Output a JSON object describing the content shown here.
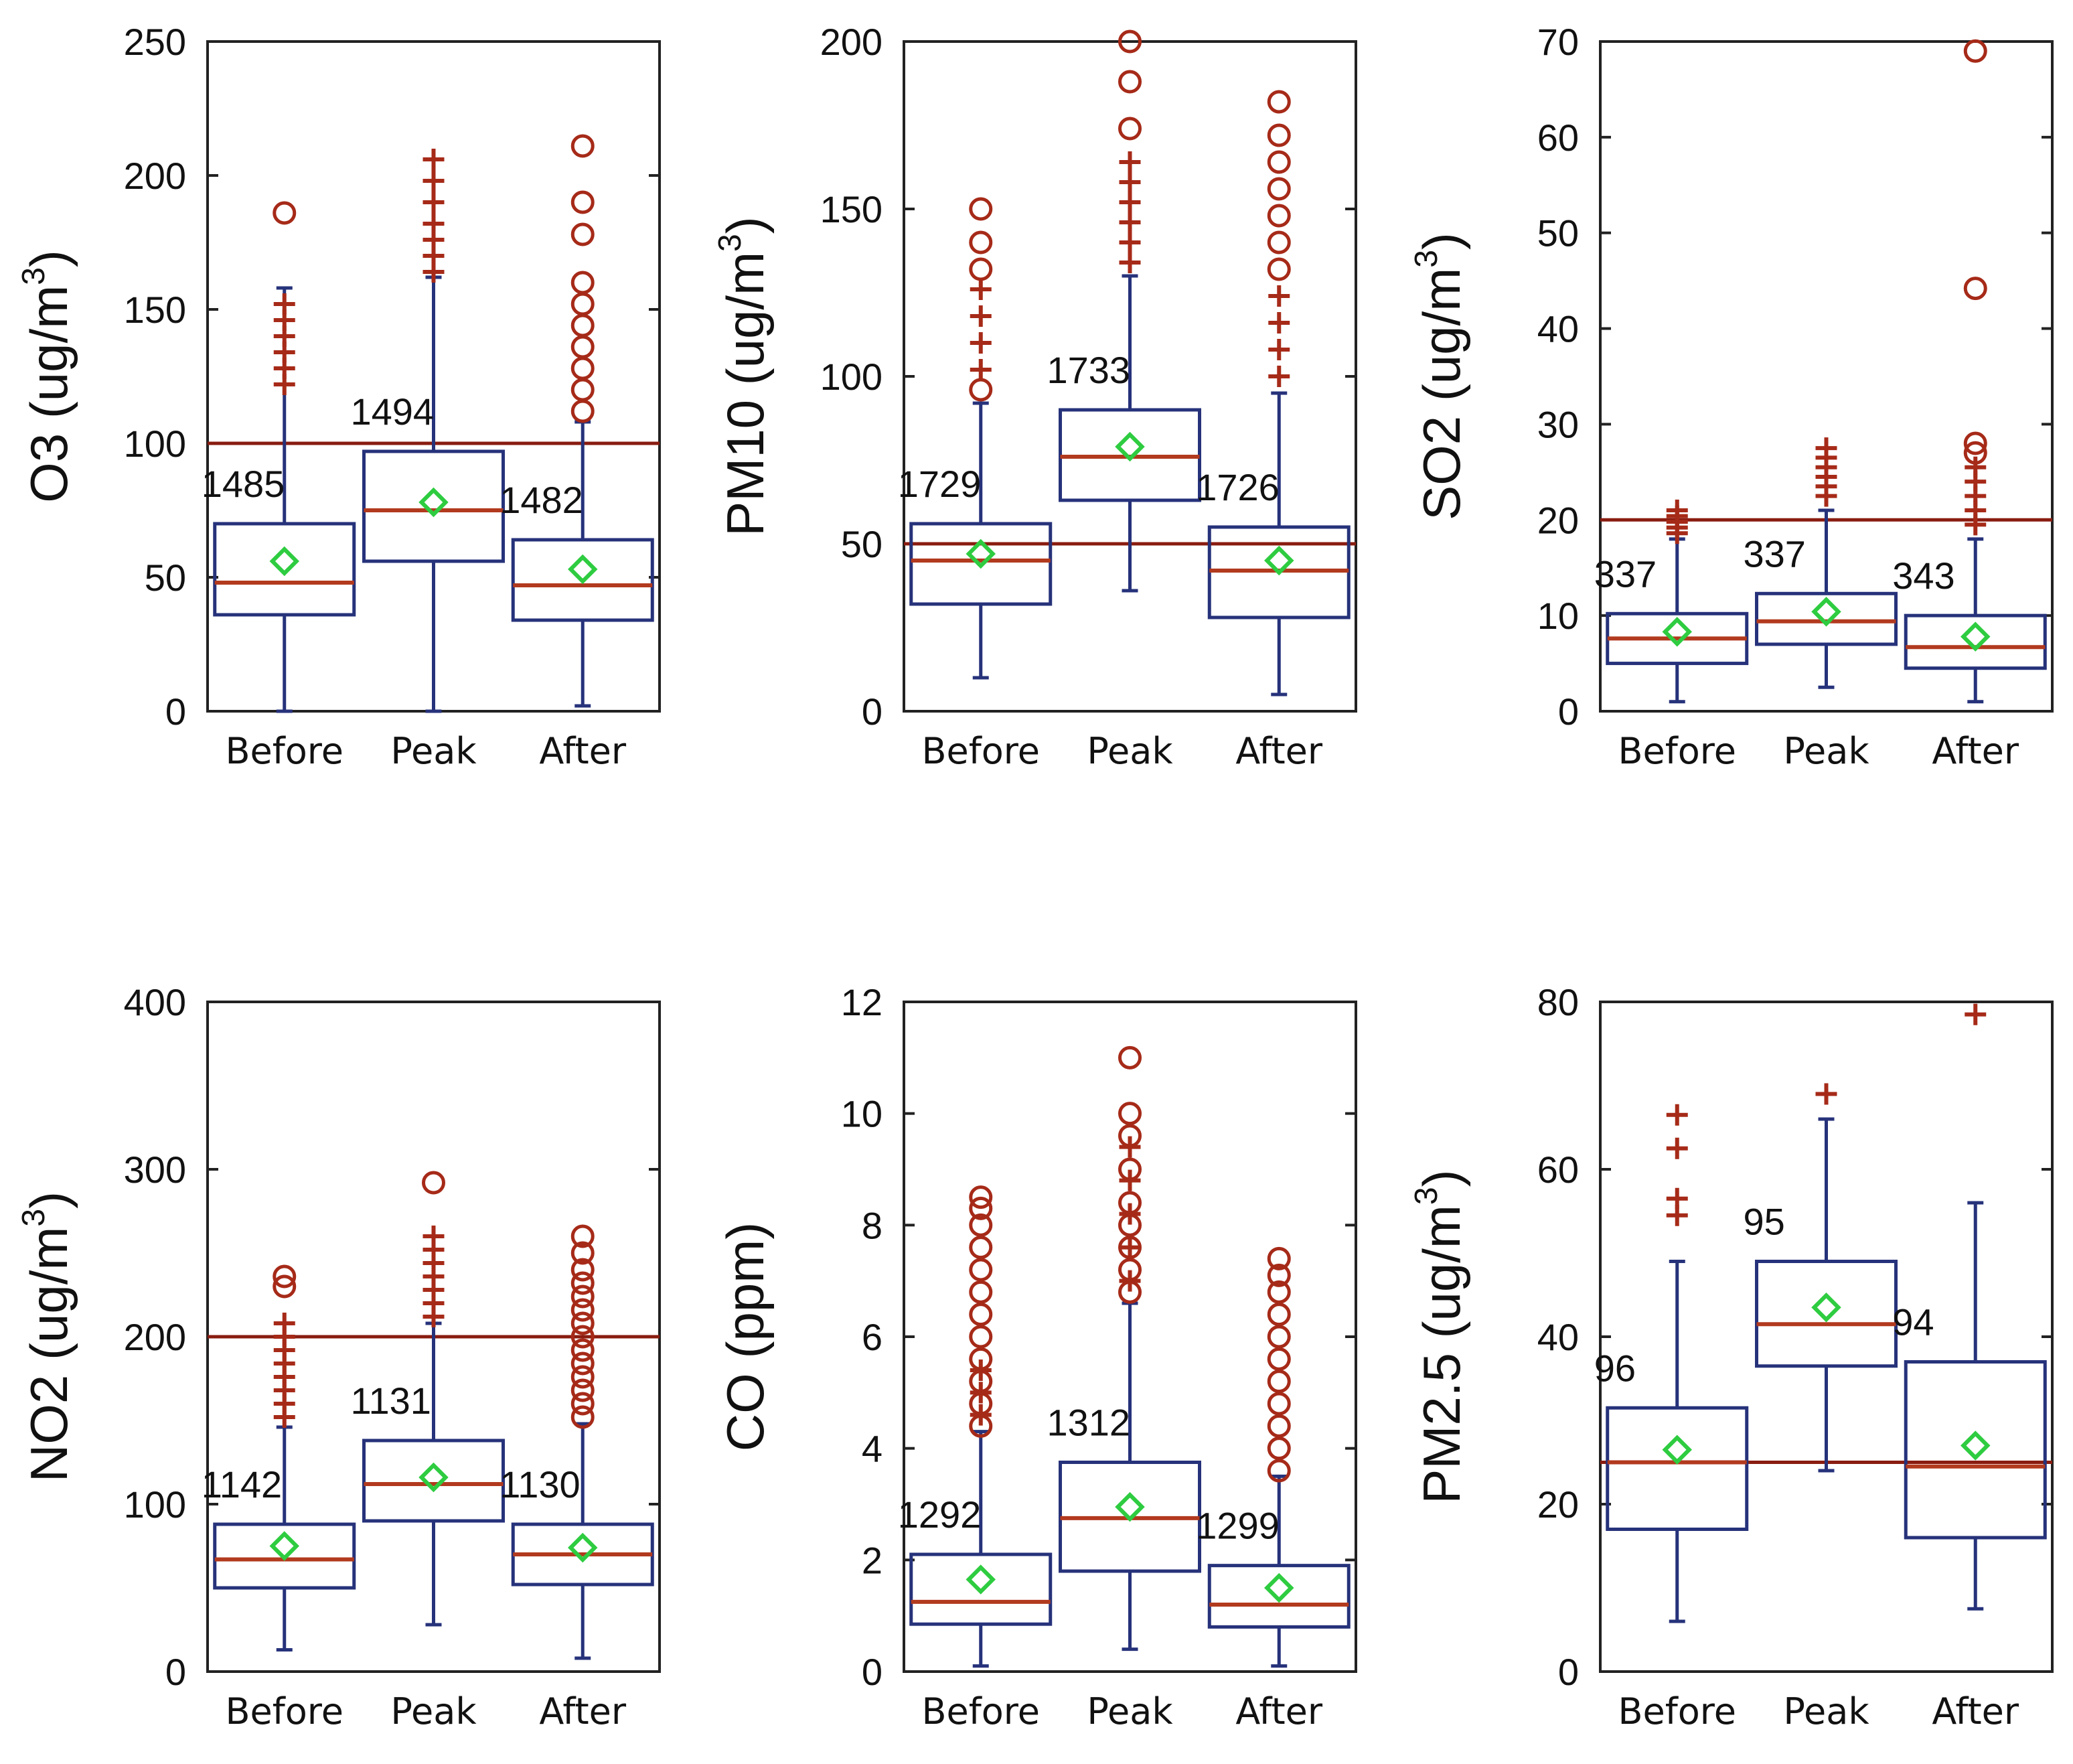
{
  "chart_data": [
    {
      "type": "box",
      "ylabel": {
        "base": "O3 (ug/m",
        "sup": "3",
        "close": ")"
      },
      "ylim": [
        0,
        250
      ],
      "yticks": [
        0,
        50,
        100,
        150,
        200,
        250
      ],
      "categories": [
        "Before",
        "Peak",
        "After"
      ],
      "reference_line": 100,
      "boxes": [
        {
          "label": "Before",
          "n": "1485",
          "lower_whisker": 0,
          "q1": 36,
          "median": 48,
          "q3": 70,
          "upper_whisker": 158,
          "mean": 56,
          "outliers_plus": [
            122,
            128,
            134,
            140,
            146,
            152
          ],
          "outliers_circle": [
            186
          ]
        },
        {
          "label": "Peak",
          "n": "1494",
          "lower_whisker": 0,
          "q1": 56,
          "median": 75,
          "q3": 97,
          "upper_whisker": 162,
          "mean": 78,
          "outliers_plus": [
            164,
            170,
            176,
            182,
            190,
            198,
            206
          ],
          "outliers_circle": []
        },
        {
          "label": "After",
          "n": "1482",
          "lower_whisker": 2,
          "q1": 34,
          "median": 47,
          "q3": 64,
          "upper_whisker": 108,
          "mean": 53,
          "outliers_plus": [],
          "outliers_circle": [
            112,
            120,
            128,
            136,
            144,
            152,
            160,
            178,
            190,
            211
          ]
        }
      ]
    },
    {
      "type": "box",
      "ylabel": {
        "base": "PM10 (ug/m",
        "sup": "3",
        "close": ")"
      },
      "ylim": [
        0,
        200
      ],
      "yticks": [
        0,
        50,
        100,
        150,
        200
      ],
      "categories": [
        "Before",
        "Peak",
        "After"
      ],
      "reference_line": 50,
      "boxes": [
        {
          "label": "Before",
          "n": "1729",
          "lower_whisker": 10,
          "q1": 32,
          "median": 45,
          "q3": 56,
          "upper_whisker": 92,
          "mean": 47,
          "outliers_plus": [
            102,
            110,
            118,
            126
          ],
          "outliers_circle": [
            96,
            132,
            140,
            150
          ]
        },
        {
          "label": "Peak",
          "n": "1733",
          "lower_whisker": 36,
          "q1": 63,
          "median": 76,
          "q3": 90,
          "upper_whisker": 130,
          "mean": 79,
          "outliers_plus": [
            134,
            140,
            146,
            152,
            158,
            164
          ],
          "outliers_circle": [
            174,
            188,
            200
          ]
        },
        {
          "label": "After",
          "n": "1726",
          "lower_whisker": 5,
          "q1": 28,
          "median": 42,
          "q3": 55,
          "upper_whisker": 95,
          "mean": 45,
          "outliers_plus": [
            100,
            108,
            116,
            124
          ],
          "outliers_circle": [
            132,
            140,
            148,
            156,
            164,
            172,
            182
          ]
        }
      ]
    },
    {
      "type": "box",
      "ylabel": {
        "base": "SO2 (ug/m",
        "sup": "3",
        "close": ")"
      },
      "ylim": [
        0,
        70
      ],
      "yticks": [
        0,
        10,
        20,
        30,
        40,
        50,
        60,
        70
      ],
      "categories": [
        "Before",
        "Peak",
        "After"
      ],
      "reference_line": 20,
      "boxes": [
        {
          "label": "Before",
          "n": "337",
          "lower_whisker": 1,
          "q1": 5,
          "median": 7.6,
          "q3": 10.2,
          "upper_whisker": 18,
          "mean": 8.3,
          "outliers_plus": [
            18.6,
            19.2,
            19.8,
            20.4,
            21
          ],
          "outliers_circle": []
        },
        {
          "label": "Peak",
          "n": "337",
          "lower_whisker": 2.5,
          "q1": 7,
          "median": 9.4,
          "q3": 12.3,
          "upper_whisker": 21,
          "mean": 10.4,
          "outliers_plus": [
            22.5,
            23.5,
            24.5,
            25.5,
            26.5,
            27.5
          ],
          "outliers_circle": []
        },
        {
          "label": "After",
          "n": "343",
          "lower_whisker": 1,
          "q1": 4.5,
          "median": 6.7,
          "q3": 10,
          "upper_whisker": 18,
          "mean": 7.8,
          "outliers_plus": [
            19.5,
            21,
            22.5,
            24,
            25.5
          ],
          "outliers_circle": [
            27,
            28,
            44.2,
            69
          ]
        }
      ]
    },
    {
      "type": "box",
      "ylabel": {
        "base": "NO2 (ug/m",
        "sup": "3",
        "close": ")"
      },
      "ylim": [
        0,
        400
      ],
      "yticks": [
        0,
        100,
        200,
        300,
        400
      ],
      "categories": [
        "Before",
        "Peak",
        "After"
      ],
      "reference_line": 200,
      "boxes": [
        {
          "label": "Before",
          "n": "1142",
          "lower_whisker": 13,
          "q1": 50,
          "median": 67,
          "q3": 88,
          "upper_whisker": 146,
          "mean": 75,
          "outliers_plus": [
            152,
            160,
            168,
            176,
            184,
            192,
            200,
            208
          ],
          "outliers_circle": [
            230,
            236
          ]
        },
        {
          "label": "Peak",
          "n": "1131",
          "lower_whisker": 28,
          "q1": 90,
          "median": 112,
          "q3": 138,
          "upper_whisker": 208,
          "mean": 116,
          "outliers_plus": [
            212,
            220,
            228,
            236,
            244,
            252,
            260
          ],
          "outliers_circle": [
            292
          ]
        },
        {
          "label": "After",
          "n": "1130",
          "lower_whisker": 8,
          "q1": 52,
          "median": 70,
          "q3": 88,
          "upper_whisker": 148,
          "mean": 74,
          "outliers_plus": [],
          "outliers_circle": [
            152,
            160,
            168,
            176,
            184,
            192,
            200,
            208,
            216,
            224,
            232,
            240,
            250,
            260
          ]
        }
      ]
    },
    {
      "type": "box",
      "ylabel": {
        "base": "CO (ppm)",
        "sup": "",
        "close": ""
      },
      "ylim": [
        0,
        12
      ],
      "yticks": [
        0,
        2,
        4,
        6,
        8,
        10,
        12
      ],
      "categories": [
        "Before",
        "Peak",
        "After"
      ],
      "reference_line": null,
      "boxes": [
        {
          "label": "Before",
          "n": "1292",
          "lower_whisker": 0.1,
          "q1": 0.85,
          "median": 1.25,
          "q3": 2.1,
          "upper_whisker": 4.3,
          "mean": 1.65,
          "outliers_plus": [
            4.6,
            5.0,
            5.4
          ],
          "outliers_circle": [
            4.4,
            4.8,
            5.2,
            5.6,
            6.0,
            6.4,
            6.8,
            7.2,
            7.6,
            8.0,
            8.3,
            8.5
          ]
        },
        {
          "label": "Peak",
          "n": "1312",
          "lower_whisker": 0.4,
          "q1": 1.8,
          "median": 2.75,
          "q3": 3.75,
          "upper_whisker": 6.6,
          "mean": 2.95,
          "outliers_plus": [
            7.0,
            7.6,
            8.2,
            8.8,
            9.4
          ],
          "outliers_circle": [
            6.8,
            7.2,
            7.6,
            8.0,
            8.4,
            9.0,
            9.6,
            10.0,
            11.0
          ]
        },
        {
          "label": "After",
          "n": "1299",
          "lower_whisker": 0.1,
          "q1": 0.8,
          "median": 1.2,
          "q3": 1.9,
          "upper_whisker": 3.5,
          "mean": 1.5,
          "outliers_plus": [],
          "outliers_circle": [
            3.6,
            4.0,
            4.4,
            4.8,
            5.2,
            5.6,
            6.0,
            6.4,
            6.8,
            7.1,
            7.4
          ]
        }
      ]
    },
    {
      "type": "box",
      "ylabel": {
        "base": "PM2.5 (ug/m",
        "sup": "3",
        "close": ")"
      },
      "ylim": [
        0,
        80
      ],
      "yticks": [
        0,
        20,
        40,
        60,
        80
      ],
      "categories": [
        "Before",
        "Peak",
        "After"
      ],
      "reference_line": 25,
      "boxes": [
        {
          "label": "Before",
          "n": "96",
          "lower_whisker": 6,
          "q1": 17,
          "median": 25,
          "q3": 31.5,
          "upper_whisker": 49,
          "mean": 26.5,
          "outliers_plus": [
            54.5,
            56.5,
            62.5,
            66.5
          ],
          "outliers_circle": []
        },
        {
          "label": "Peak",
          "n": "95",
          "lower_whisker": 24,
          "q1": 36.5,
          "median": 41.5,
          "q3": 49,
          "upper_whisker": 66,
          "mean": 43.5,
          "outliers_plus": [
            69
          ],
          "outliers_circle": []
        },
        {
          "label": "After",
          "n": "94",
          "lower_whisker": 7.5,
          "q1": 16,
          "median": 24.5,
          "q3": 37,
          "upper_whisker": 56,
          "mean": 27,
          "outliers_plus": [
            78.5
          ],
          "outliers_circle": []
        }
      ]
    }
  ]
}
